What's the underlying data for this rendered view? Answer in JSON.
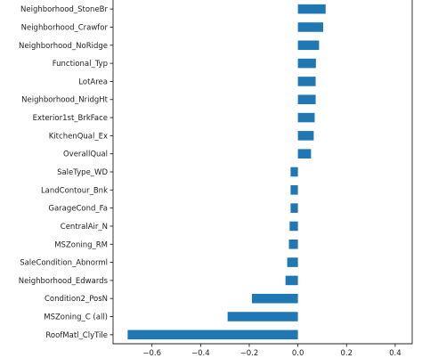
{
  "chart_data": {
    "type": "bar",
    "orientation": "horizontal",
    "bar_color": "#1f77b4",
    "categories": [
      "Neighborhood_StoneBr",
      "Neighborhood_Crawfor",
      "Neighborhood_NoRidge",
      "Functional_Typ",
      "LotArea",
      "Neighborhood_NridgHt",
      "Exterior1st_BrkFace",
      "KitchenQual_Ex",
      "OverallQual",
      "SaleType_WD",
      "LandContour_Bnk",
      "GarageCond_Fa",
      "CentralAir_N",
      "MSZoning_RM",
      "SaleCondition_Abnorml",
      "Neighborhood_Edwards",
      "Condition2_PosN",
      "MSZoning_C (all)",
      "RoofMatl_ClyTile"
    ],
    "values": [
      0.114,
      0.104,
      0.087,
      0.074,
      0.073,
      0.073,
      0.069,
      0.065,
      0.054,
      -0.03,
      -0.03,
      -0.03,
      -0.034,
      -0.037,
      -0.044,
      -0.051,
      -0.189,
      -0.289,
      -0.7
    ],
    "xlim": [
      -0.76,
      0.47
    ],
    "xticks": [
      -0.6,
      -0.4,
      -0.2,
      0.0,
      0.2,
      0.4
    ],
    "xtick_labels": [
      "−0.6",
      "−0.4",
      "−0.2",
      "0.0",
      "0.2",
      "0.4"
    ],
    "title": "",
    "xlabel": "",
    "ylabel": "",
    "grid": false,
    "legend": "none"
  }
}
